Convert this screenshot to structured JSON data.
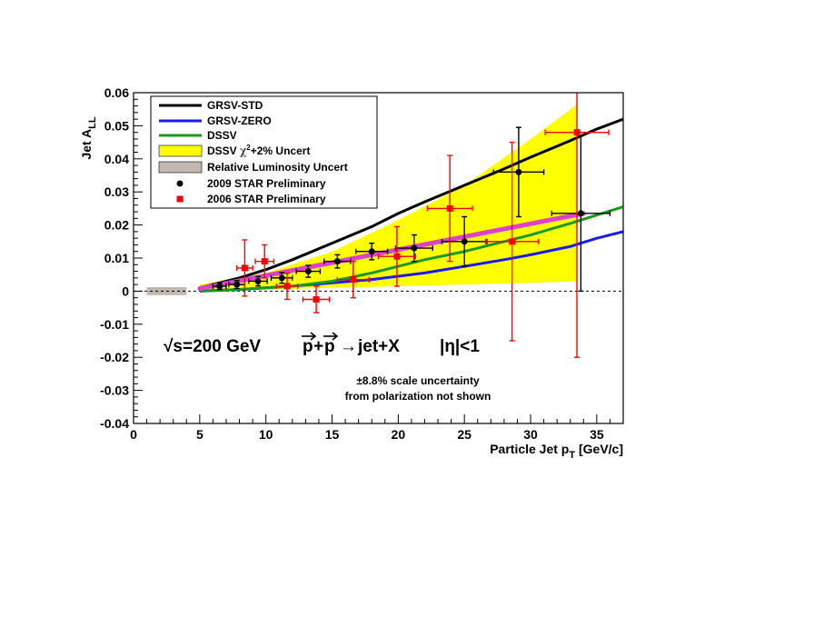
{
  "chart_data": {
    "type": "scatter",
    "title": "",
    "xlabel": "Particle Jet p",
    "xlabel_sub": "T",
    "xlabel_units": " [GeV/c]",
    "ylabel": "Jet A",
    "ylabel_sub": "LL",
    "xlim": [
      0,
      37
    ],
    "ylim": [
      -0.04,
      0.06
    ],
    "x_ticks": [
      0,
      5,
      10,
      15,
      20,
      25,
      30,
      35
    ],
    "x_tick_labels": [
      "0",
      "5",
      "10",
      "15",
      "20",
      "25",
      "30",
      "35"
    ],
    "y_ticks": [
      -0.04,
      -0.03,
      -0.02,
      -0.01,
      0,
      0.01,
      0.02,
      0.03,
      0.04,
      0.05,
      0.06
    ],
    "y_tick_labels": [
      "-0.04",
      "-0.03",
      "-0.02",
      "-0.01",
      "0",
      "0.01",
      "0.02",
      "0.03",
      "0.04",
      "0.05",
      "0.06"
    ],
    "legend_position": "top-left",
    "legend": [
      {
        "label": "GRSV-STD",
        "kind": "line",
        "color": "#000000"
      },
      {
        "label": "GRSV-ZERO",
        "kind": "line",
        "color": "#1a1aff"
      },
      {
        "label": "DSSV",
        "kind": "line",
        "color": "#1a9a1a"
      },
      {
        "label_pre": "DSSV ",
        "label_chi": "χ",
        "label_sup": "2",
        "label_post": "+2% Uncert",
        "kind": "box",
        "color": "#ffff00"
      },
      {
        "label": "Relative Luminosity Uncert",
        "kind": "box",
        "color": "#c0b8b0"
      },
      {
        "label": "2009 STAR Preliminary",
        "kind": "circle",
        "color": "#000000"
      },
      {
        "label": "2006 STAR Preliminary",
        "kind": "square",
        "color": "#ff0000"
      }
    ],
    "curves": [
      {
        "name": "GRSV-STD",
        "color": "#000000",
        "x": [
          5,
          8,
          10,
          12,
          15,
          18,
          20,
          22,
          25,
          28,
          30,
          33,
          35,
          37
        ],
        "y": [
          0.001,
          0.004,
          0.0065,
          0.0095,
          0.0145,
          0.0195,
          0.0235,
          0.027,
          0.032,
          0.037,
          0.0405,
          0.0455,
          0.049,
          0.052
        ]
      },
      {
        "name": "GRSV-ZERO",
        "color": "#1a1aff",
        "x": [
          5,
          8,
          10,
          12,
          15,
          18,
          20,
          22,
          25,
          28,
          30,
          33,
          35,
          37
        ],
        "y": [
          0.0,
          0.0005,
          0.001,
          0.0015,
          0.0025,
          0.0035,
          0.0045,
          0.0055,
          0.0075,
          0.0095,
          0.011,
          0.0135,
          0.016,
          0.018
        ]
      },
      {
        "name": "DSSV",
        "color": "#1a9a1a",
        "x": [
          5,
          8,
          10,
          12,
          15,
          18,
          20,
          22,
          25,
          28,
          30,
          33,
          35,
          37
        ],
        "y": [
          0.0,
          0.0005,
          0.001,
          0.0015,
          0.003,
          0.0055,
          0.0075,
          0.0095,
          0.012,
          0.015,
          0.017,
          0.0205,
          0.023,
          0.0255
        ]
      }
    ],
    "theory_band": {
      "name": "DSSV χ2+2% Uncert",
      "color": "#ffff00",
      "x": [
        5,
        10,
        15,
        20,
        25,
        30,
        33.5
      ],
      "upper": [
        0.002,
        0.0055,
        0.012,
        0.0215,
        0.032,
        0.046,
        0.0565
      ],
      "lower": [
        0.0,
        0.0005,
        0.001,
        0.0015,
        0.002,
        0.0025,
        0.003
      ]
    },
    "fit_line": {
      "color": "#e040d0",
      "x": [
        5,
        34
      ],
      "y": [
        0.0008,
        0.0235
      ]
    },
    "relative_luminosity_band": {
      "color": "#c0b8b0",
      "x": [
        1,
        4
      ],
      "y": [
        -0.0012,
        0.0012
      ]
    },
    "series": [
      {
        "name": "2009 STAR Preliminary",
        "marker": "circle",
        "color": "#000000",
        "points": [
          {
            "x": 6.5,
            "y": 0.0015,
            "xerr": 0.5,
            "yerr": 0.001
          },
          {
            "x": 7.8,
            "y": 0.002,
            "xerr": 0.6,
            "yerr": 0.0012
          },
          {
            "x": 9.4,
            "y": 0.003,
            "xerr": 0.7,
            "yerr": 0.0014
          },
          {
            "x": 11.2,
            "y": 0.004,
            "xerr": 0.8,
            "yerr": 0.0016
          },
          {
            "x": 13.2,
            "y": 0.006,
            "xerr": 0.9,
            "yerr": 0.0018
          },
          {
            "x": 15.4,
            "y": 0.009,
            "xerr": 1.0,
            "yerr": 0.002
          },
          {
            "x": 18.0,
            "y": 0.012,
            "xerr": 1.2,
            "yerr": 0.0025
          },
          {
            "x": 21.2,
            "y": 0.013,
            "xerr": 1.4,
            "yerr": 0.004
          },
          {
            "x": 25.0,
            "y": 0.015,
            "xerr": 1.7,
            "yerr": 0.0075
          },
          {
            "x": 29.1,
            "y": 0.036,
            "xerr": 1.9,
            "yerr": 0.0135
          },
          {
            "x": 33.8,
            "y": 0.0235,
            "xerr": 2.2,
            "yerr": 0.0235
          }
        ]
      },
      {
        "name": "2006 STAR Preliminary",
        "marker": "square",
        "color": "#ff0000",
        "points": [
          {
            "x": 8.4,
            "y": 0.007,
            "xerr": 0.6,
            "yerr": 0.0085
          },
          {
            "x": 9.9,
            "y": 0.009,
            "xerr": 0.7,
            "yerr": 0.005
          },
          {
            "x": 11.6,
            "y": 0.0015,
            "xerr": 0.8,
            "yerr": 0.004
          },
          {
            "x": 13.8,
            "y": -0.0025,
            "xerr": 1.0,
            "yerr": 0.004
          },
          {
            "x": 16.6,
            "y": 0.0035,
            "xerr": 1.2,
            "yerr": 0.0055
          },
          {
            "x": 19.9,
            "y": 0.0105,
            "xerr": 1.4,
            "yerr": 0.009
          },
          {
            "x": 23.9,
            "y": 0.025,
            "xerr": 1.7,
            "yerr": 0.016
          },
          {
            "x": 28.6,
            "y": 0.015,
            "xerr": 2.0,
            "yerr": 0.03
          },
          {
            "x": 33.5,
            "y": 0.048,
            "xerr": 2.4,
            "yerr": 0.068
          }
        ]
      }
    ],
    "annotations": {
      "sqrt_s": "√s=200 GeV",
      "reaction_p1": "p",
      "reaction_plus": "+",
      "reaction_p2": "p",
      "reaction_arrow": "→",
      "reaction_final": "jet+X",
      "eta_cut": "|η|<1",
      "scale_line1": "±8.8% scale uncertainty",
      "scale_line2": "from polarization not shown"
    }
  }
}
